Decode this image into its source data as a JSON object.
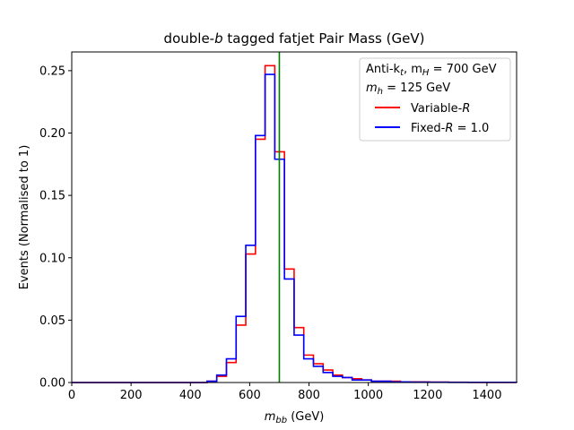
{
  "chart_data": {
    "type": "line",
    "title": {
      "prefix": "double-",
      "italic": "b",
      "suffix": " tagged fatjet Pair Mass (GeV)"
    },
    "xlabel": {
      "main": "m",
      "sub": "bb",
      "unit": " (GeV)"
    },
    "ylabel": "Events (Normalised to 1)",
    "xlim": [
      0,
      1500
    ],
    "ylim": [
      0,
      0.265
    ],
    "xticks": [
      0,
      200,
      400,
      600,
      800,
      1000,
      1200,
      1400
    ],
    "xtick_labels": [
      "0",
      "200",
      "400",
      "600",
      "800",
      "1000",
      "1200",
      "1400"
    ],
    "yticks": [
      0.0,
      0.05,
      0.1,
      0.15,
      0.2,
      0.25
    ],
    "ytick_labels": [
      "0.00",
      "0.05",
      "0.10",
      "0.15",
      "0.20",
      "0.25"
    ],
    "grid": false,
    "legend_placement": "top-right",
    "legend_header": {
      "line1_prefix": "Anti-k",
      "line1_sub": "t",
      "line1_mid": ", m",
      "line1_sub2": "H",
      "line1_suffix": " = 700 GeV",
      "line2_prefix": "m",
      "line2_sub": "h",
      "line2_suffix": " = 125 GeV"
    },
    "vline": {
      "x": 700,
      "color": "#008000"
    },
    "bin_edges": [
      0,
      32.6,
      65.2,
      97.8,
      130.4,
      163,
      195.6,
      228.2,
      260.8,
      293.4,
      326,
      358.6,
      391.2,
      423.8,
      456.4,
      489,
      521.6,
      554.2,
      586.8,
      619.4,
      652,
      684.6,
      717.2,
      749.8,
      782.4,
      815,
      847.6,
      880.2,
      912.8,
      945.4,
      978,
      1010.6,
      1043.2,
      1075.8,
      1108.4,
      1141,
      1173.6,
      1206.2,
      1238.8,
      1271.4,
      1304,
      1336.6,
      1369.2,
      1401.8,
      1434.4,
      1467,
      1500
    ],
    "series": [
      {
        "name": {
          "prefix": "Variable-",
          "italic": "R",
          "suffix": ""
        },
        "color": "#ff0000",
        "values": [
          0,
          0,
          0,
          0,
          0,
          0,
          0,
          0,
          0,
          0,
          0,
          0,
          0,
          0,
          0.001,
          0.005,
          0.016,
          0.046,
          0.103,
          0.195,
          0.254,
          0.185,
          0.091,
          0.044,
          0.022,
          0.015,
          0.01,
          0.006,
          0.004,
          0.003,
          0.002,
          0.001,
          0.001,
          0.001,
          0.0005,
          0.0005,
          0.0005,
          0.0003,
          0.0003,
          0.0002,
          0.0002,
          0.0001,
          0.0001,
          0.0001,
          0.0001,
          0.0001
        ]
      },
      {
        "name": {
          "prefix": "Fixed-",
          "italic": "R",
          "suffix": " = 1.0"
        },
        "color": "#0000ff",
        "values": [
          0,
          0,
          0,
          0,
          0,
          0,
          0,
          0,
          0,
          0,
          0,
          0,
          0,
          0,
          0.001,
          0.006,
          0.019,
          0.053,
          0.11,
          0.198,
          0.247,
          0.179,
          0.083,
          0.038,
          0.019,
          0.013,
          0.008,
          0.005,
          0.004,
          0.002,
          0.002,
          0.001,
          0.001,
          0.0005,
          0.0005,
          0.0003,
          0.0003,
          0.0002,
          0.0002,
          0.0001,
          0.0001,
          0.0001,
          0.0001,
          0.0001,
          0.0001,
          0.0001
        ]
      }
    ]
  }
}
